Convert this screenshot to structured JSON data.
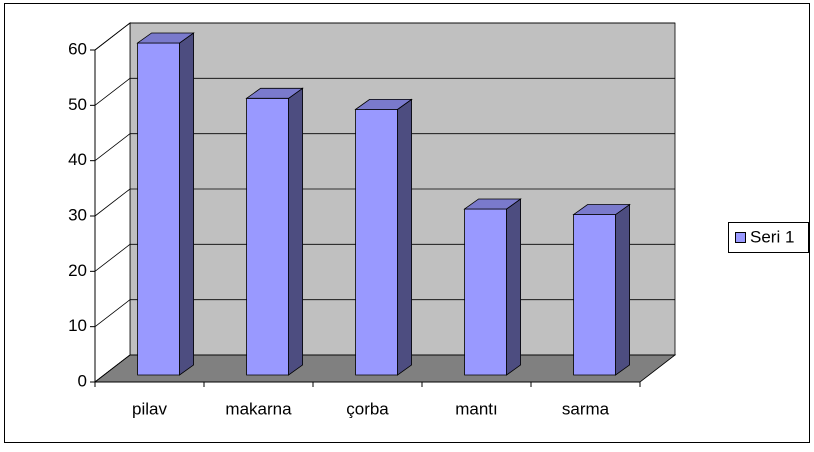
{
  "chart_data": {
    "type": "bar3d",
    "categories": [
      "pilav",
      "makarna",
      "çorba",
      "mantı",
      "sarma"
    ],
    "series": [
      {
        "name": "Seri 1",
        "color": "#9999ff",
        "values": [
          60,
          50,
          48,
          30,
          29
        ]
      }
    ],
    "ylim": [
      0,
      60
    ],
    "yticks": [
      0,
      10,
      20,
      30,
      40,
      50,
      60
    ],
    "grid": true,
    "legend": "right"
  }
}
